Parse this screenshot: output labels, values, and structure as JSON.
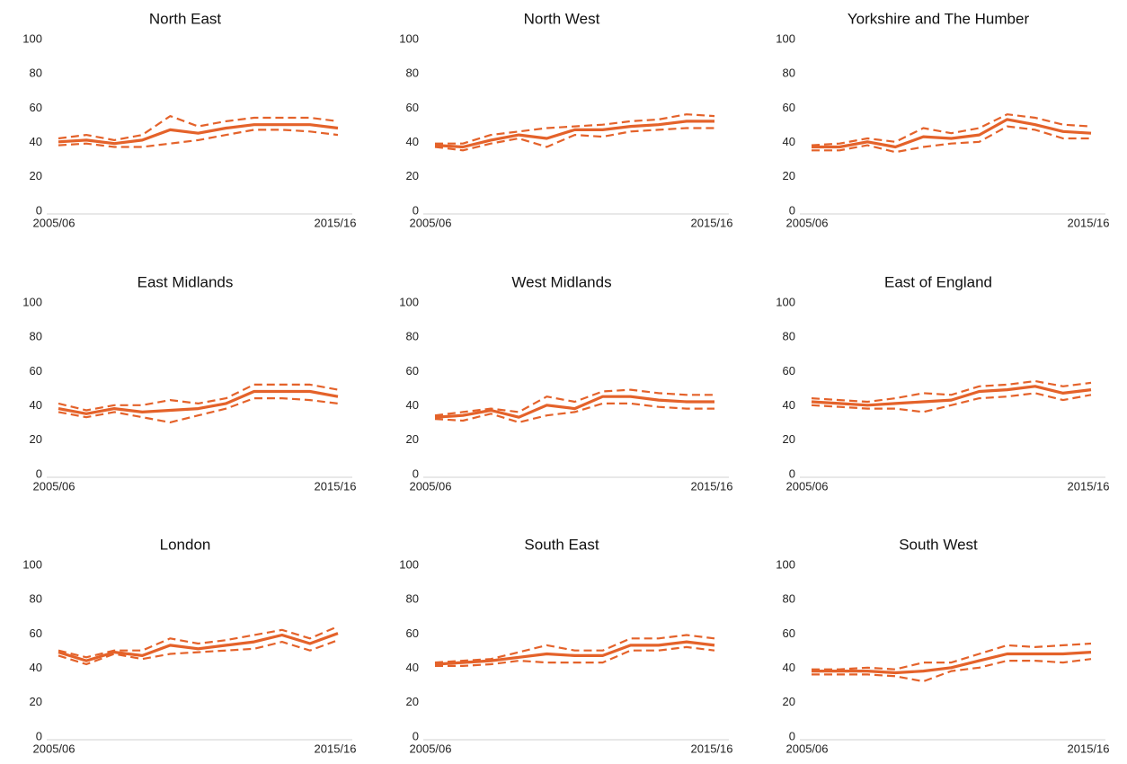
{
  "chart_data": [
    {
      "type": "line",
      "title": "North East",
      "categories": [
        "2005/06",
        null,
        null,
        null,
        null,
        null,
        null,
        null,
        null,
        null,
        "2015/16"
      ],
      "ylim": [
        0,
        100
      ],
      "yticks": [
        0,
        20,
        40,
        60,
        80,
        100
      ],
      "series": [
        {
          "color": "#e4622a",
          "style": "solid",
          "values": [
            42,
            43,
            41,
            43,
            49,
            47,
            50,
            52,
            52,
            52,
            50
          ]
        },
        {
          "color": "#e4622a",
          "style": "dashed",
          "values": [
            44,
            46,
            43,
            46,
            57,
            51,
            54,
            56,
            56,
            56,
            54
          ]
        },
        {
          "color": "#e4622a",
          "style": "dashed",
          "values": [
            40,
            41,
            39,
            39,
            41,
            43,
            46,
            49,
            49,
            48,
            46
          ]
        }
      ]
    },
    {
      "type": "line",
      "title": "North West",
      "categories": [
        "2005/06",
        null,
        null,
        null,
        null,
        null,
        null,
        null,
        null,
        null,
        "2015/16"
      ],
      "ylim": [
        0,
        100
      ],
      "yticks": [
        0,
        20,
        40,
        60,
        80,
        100
      ],
      "series": [
        {
          "color": "#e4622a",
          "style": "solid",
          "values": [
            40,
            39,
            43,
            46,
            44,
            49,
            49,
            51,
            52,
            54,
            54
          ]
        },
        {
          "color": "#e4622a",
          "style": "dashed",
          "values": [
            41,
            41,
            46,
            48,
            50,
            51,
            52,
            54,
            55,
            58,
            57
          ]
        },
        {
          "color": "#e4622a",
          "style": "dashed",
          "values": [
            39,
            37,
            41,
            44,
            39,
            46,
            45,
            48,
            49,
            50,
            50
          ]
        }
      ]
    },
    {
      "type": "line",
      "title": "Yorkshire and The Humber",
      "categories": [
        "2005/06",
        null,
        null,
        null,
        null,
        null,
        null,
        null,
        null,
        null,
        "2015/16"
      ],
      "ylim": [
        0,
        100
      ],
      "yticks": [
        0,
        20,
        40,
        60,
        80,
        100
      ],
      "series": [
        {
          "color": "#e4622a",
          "style": "solid",
          "values": [
            39,
            39,
            42,
            39,
            45,
            44,
            46,
            55,
            52,
            48,
            47
          ]
        },
        {
          "color": "#e4622a",
          "style": "dashed",
          "values": [
            40,
            41,
            44,
            42,
            50,
            47,
            50,
            58,
            56,
            52,
            51
          ]
        },
        {
          "color": "#e4622a",
          "style": "dashed",
          "values": [
            37,
            37,
            40,
            36,
            39,
            41,
            42,
            51,
            49,
            44,
            44
          ]
        }
      ]
    },
    {
      "type": "line",
      "title": "East Midlands",
      "categories": [
        "2005/06",
        null,
        null,
        null,
        null,
        null,
        null,
        null,
        null,
        null,
        "2015/16"
      ],
      "ylim": [
        0,
        100
      ],
      "yticks": [
        0,
        20,
        40,
        60,
        80,
        100
      ],
      "series": [
        {
          "color": "#e4622a",
          "style": "solid",
          "values": [
            40,
            37,
            40,
            38,
            39,
            40,
            43,
            50,
            50,
            50,
            47
          ]
        },
        {
          "color": "#e4622a",
          "style": "dashed",
          "values": [
            43,
            39,
            42,
            42,
            45,
            43,
            46,
            54,
            54,
            54,
            51
          ]
        },
        {
          "color": "#e4622a",
          "style": "dashed",
          "values": [
            38,
            35,
            38,
            35,
            32,
            36,
            40,
            46,
            46,
            45,
            43
          ]
        }
      ]
    },
    {
      "type": "line",
      "title": "West Midlands",
      "categories": [
        "2005/06",
        null,
        null,
        null,
        null,
        null,
        null,
        null,
        null,
        null,
        "2015/16"
      ],
      "ylim": [
        0,
        100
      ],
      "yticks": [
        0,
        20,
        40,
        60,
        80,
        100
      ],
      "series": [
        {
          "color": "#e4622a",
          "style": "solid",
          "values": [
            35,
            36,
            39,
            35,
            42,
            40,
            47,
            47,
            45,
            44,
            44
          ]
        },
        {
          "color": "#e4622a",
          "style": "dashed",
          "values": [
            36,
            38,
            40,
            38,
            47,
            44,
            50,
            51,
            49,
            48,
            48
          ]
        },
        {
          "color": "#e4622a",
          "style": "dashed",
          "values": [
            34,
            33,
            37,
            32,
            36,
            38,
            43,
            43,
            41,
            40,
            40
          ]
        }
      ]
    },
    {
      "type": "line",
      "title": "East of England",
      "categories": [
        "2005/06",
        null,
        null,
        null,
        null,
        null,
        null,
        null,
        null,
        null,
        "2015/16"
      ],
      "ylim": [
        0,
        100
      ],
      "yticks": [
        0,
        20,
        40,
        60,
        80,
        100
      ],
      "series": [
        {
          "color": "#e4622a",
          "style": "solid",
          "values": [
            44,
            43,
            42,
            43,
            44,
            45,
            50,
            51,
            53,
            49,
            51
          ]
        },
        {
          "color": "#e4622a",
          "style": "dashed",
          "values": [
            46,
            45,
            44,
            46,
            49,
            48,
            53,
            54,
            56,
            53,
            55
          ]
        },
        {
          "color": "#e4622a",
          "style": "dashed",
          "values": [
            42,
            41,
            40,
            40,
            38,
            42,
            46,
            47,
            49,
            45,
            48
          ]
        }
      ]
    },
    {
      "type": "line",
      "title": "London",
      "categories": [
        "2005/06",
        null,
        null,
        null,
        null,
        null,
        null,
        null,
        null,
        null,
        "2015/16"
      ],
      "ylim": [
        0,
        100
      ],
      "yticks": [
        0,
        20,
        40,
        60,
        80,
        100
      ],
      "series": [
        {
          "color": "#e4622a",
          "style": "solid",
          "values": [
            51,
            46,
            51,
            49,
            55,
            53,
            55,
            57,
            61,
            56,
            62
          ]
        },
        {
          "color": "#e4622a",
          "style": "dashed",
          "values": [
            52,
            48,
            52,
            52,
            59,
            56,
            58,
            61,
            64,
            59,
            66
          ]
        },
        {
          "color": "#e4622a",
          "style": "dashed",
          "values": [
            49,
            44,
            50,
            47,
            50,
            51,
            52,
            53,
            57,
            52,
            58
          ]
        }
      ]
    },
    {
      "type": "line",
      "title": "South East",
      "categories": [
        "2005/06",
        null,
        null,
        null,
        null,
        null,
        null,
        null,
        null,
        null,
        "2015/16"
      ],
      "ylim": [
        0,
        100
      ],
      "yticks": [
        0,
        20,
        40,
        60,
        80,
        100
      ],
      "series": [
        {
          "color": "#e4622a",
          "style": "solid",
          "values": [
            44,
            45,
            46,
            48,
            50,
            49,
            49,
            55,
            55,
            57,
            55
          ]
        },
        {
          "color": "#e4622a",
          "style": "dashed",
          "values": [
            45,
            46,
            47,
            51,
            55,
            52,
            52,
            59,
            59,
            61,
            59
          ]
        },
        {
          "color": "#e4622a",
          "style": "dashed",
          "values": [
            43,
            43,
            44,
            46,
            45,
            45,
            45,
            52,
            52,
            54,
            52
          ]
        }
      ]
    },
    {
      "type": "line",
      "title": "South West",
      "categories": [
        "2005/06",
        null,
        null,
        null,
        null,
        null,
        null,
        null,
        null,
        null,
        "2015/16"
      ],
      "ylim": [
        0,
        100
      ],
      "yticks": [
        0,
        20,
        40,
        60,
        80,
        100
      ],
      "series": [
        {
          "color": "#e4622a",
          "style": "solid",
          "values": [
            40,
            40,
            40,
            39,
            40,
            42,
            46,
            50,
            50,
            50,
            51
          ]
        },
        {
          "color": "#e4622a",
          "style": "dashed",
          "values": [
            41,
            41,
            42,
            41,
            45,
            45,
            50,
            55,
            54,
            55,
            56
          ]
        },
        {
          "color": "#e4622a",
          "style": "dashed",
          "values": [
            38,
            38,
            38,
            37,
            34,
            40,
            42,
            46,
            46,
            45,
            47
          ]
        }
      ]
    }
  ]
}
